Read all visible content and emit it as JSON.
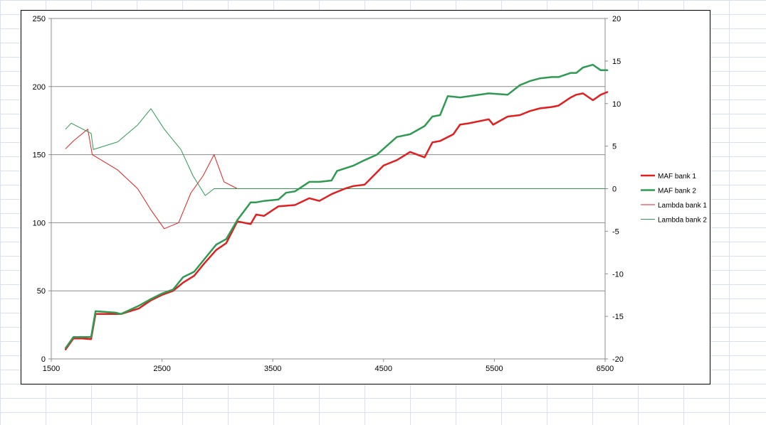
{
  "chart_data": {
    "type": "line",
    "title": "",
    "xlabel": "",
    "ylabel": "",
    "y2label": "",
    "grid": "horizontal major gridlines on primary axis",
    "legend_position": "right",
    "xlim": [
      1500,
      6500
    ],
    "ylim": [
      0,
      250
    ],
    "y2lim": [
      -20,
      20
    ],
    "x_ticks": [
      1500,
      2500,
      3500,
      4500,
      5500,
      6500
    ],
    "y_ticks": [
      0,
      50,
      100,
      150,
      200,
      250
    ],
    "y2_ticks": [
      -20,
      -15,
      -10,
      -5,
      0,
      5,
      10,
      15,
      20
    ],
    "series": [
      {
        "name": "MAF bank 1",
        "axis": "primary",
        "color": "#e02020",
        "width": 2.5,
        "x": [
          1630,
          1700,
          1780,
          1860,
          1900,
          2080,
          2130,
          2290,
          2400,
          2500,
          2600,
          2690,
          2790,
          2880,
          2990,
          3080,
          3180,
          3300,
          3350,
          3420,
          3550,
          3700,
          3830,
          3920,
          4030,
          4150,
          4230,
          4330,
          4500,
          4620,
          4740,
          4870,
          4940,
          5010,
          5130,
          5190,
          5270,
          5450,
          5490,
          5620,
          5730,
          5820,
          5910,
          6020,
          6080,
          6190,
          6240,
          6300,
          6390,
          6460,
          6520
        ],
        "y": [
          7,
          15,
          15,
          14.5,
          33,
          33,
          33,
          37,
          43,
          47,
          50,
          56,
          61,
          70,
          80,
          85,
          101,
          99,
          106,
          105,
          112,
          113,
          118,
          116,
          121,
          125,
          127,
          128,
          142,
          146,
          152,
          148,
          159,
          160,
          165,
          172,
          173,
          176,
          172,
          178,
          179,
          182,
          184,
          185,
          186,
          192,
          194,
          195,
          190,
          194,
          196
        ]
      },
      {
        "name": "MAF bank 2",
        "axis": "primary",
        "color": "#2e9a52",
        "width": 2.5,
        "x": [
          1630,
          1700,
          1780,
          1860,
          1900,
          2080,
          2130,
          2290,
          2400,
          2500,
          2600,
          2690,
          2790,
          2880,
          2990,
          3080,
          3180,
          3300,
          3350,
          3420,
          3550,
          3620,
          3700,
          3830,
          3920,
          4030,
          4080,
          4230,
          4330,
          4440,
          4620,
          4740,
          4870,
          4940,
          5010,
          5080,
          5190,
          5450,
          5620,
          5730,
          5820,
          5910,
          6020,
          6080,
          6190,
          6240,
          6300,
          6390,
          6460,
          6520
        ],
        "y": [
          8,
          16,
          16,
          16,
          35,
          34,
          33,
          39,
          44,
          48,
          51,
          60,
          64,
          73,
          84,
          88,
          102,
          115,
          115,
          116,
          117,
          122,
          123,
          130,
          130,
          131,
          138,
          142,
          146,
          150,
          163,
          165,
          171,
          178,
          179,
          193,
          192,
          195,
          194,
          201,
          204,
          206,
          207,
          207,
          210,
          210,
          214,
          216,
          212,
          212
        ]
      },
      {
        "name": "Lambda bank 1",
        "axis": "secondary",
        "color": "#e02020",
        "width": 1,
        "x": [
          1630,
          1700,
          1830,
          1870,
          2100,
          2280,
          2400,
          2520,
          2650,
          2760,
          2870,
          2970,
          3060,
          3180
        ],
        "y": [
          4.7,
          5.6,
          7,
          4,
          2.2,
          0,
          -2.5,
          -4.7,
          -4,
          -0.5,
          1.5,
          4,
          0.8,
          0
        ]
      },
      {
        "name": "Lambda bank 2",
        "axis": "secondary",
        "color": "#2e9a52",
        "width": 1,
        "x": [
          1630,
          1680,
          1860,
          1880,
          2100,
          2280,
          2400,
          2520,
          2670,
          2780,
          2890,
          2970,
          3080,
          3180,
          6500
        ],
        "y": [
          7,
          7.7,
          6.5,
          4.6,
          5.5,
          7.5,
          9.4,
          7,
          4.6,
          1.5,
          -0.8,
          0,
          0,
          0,
          0
        ]
      }
    ]
  }
}
